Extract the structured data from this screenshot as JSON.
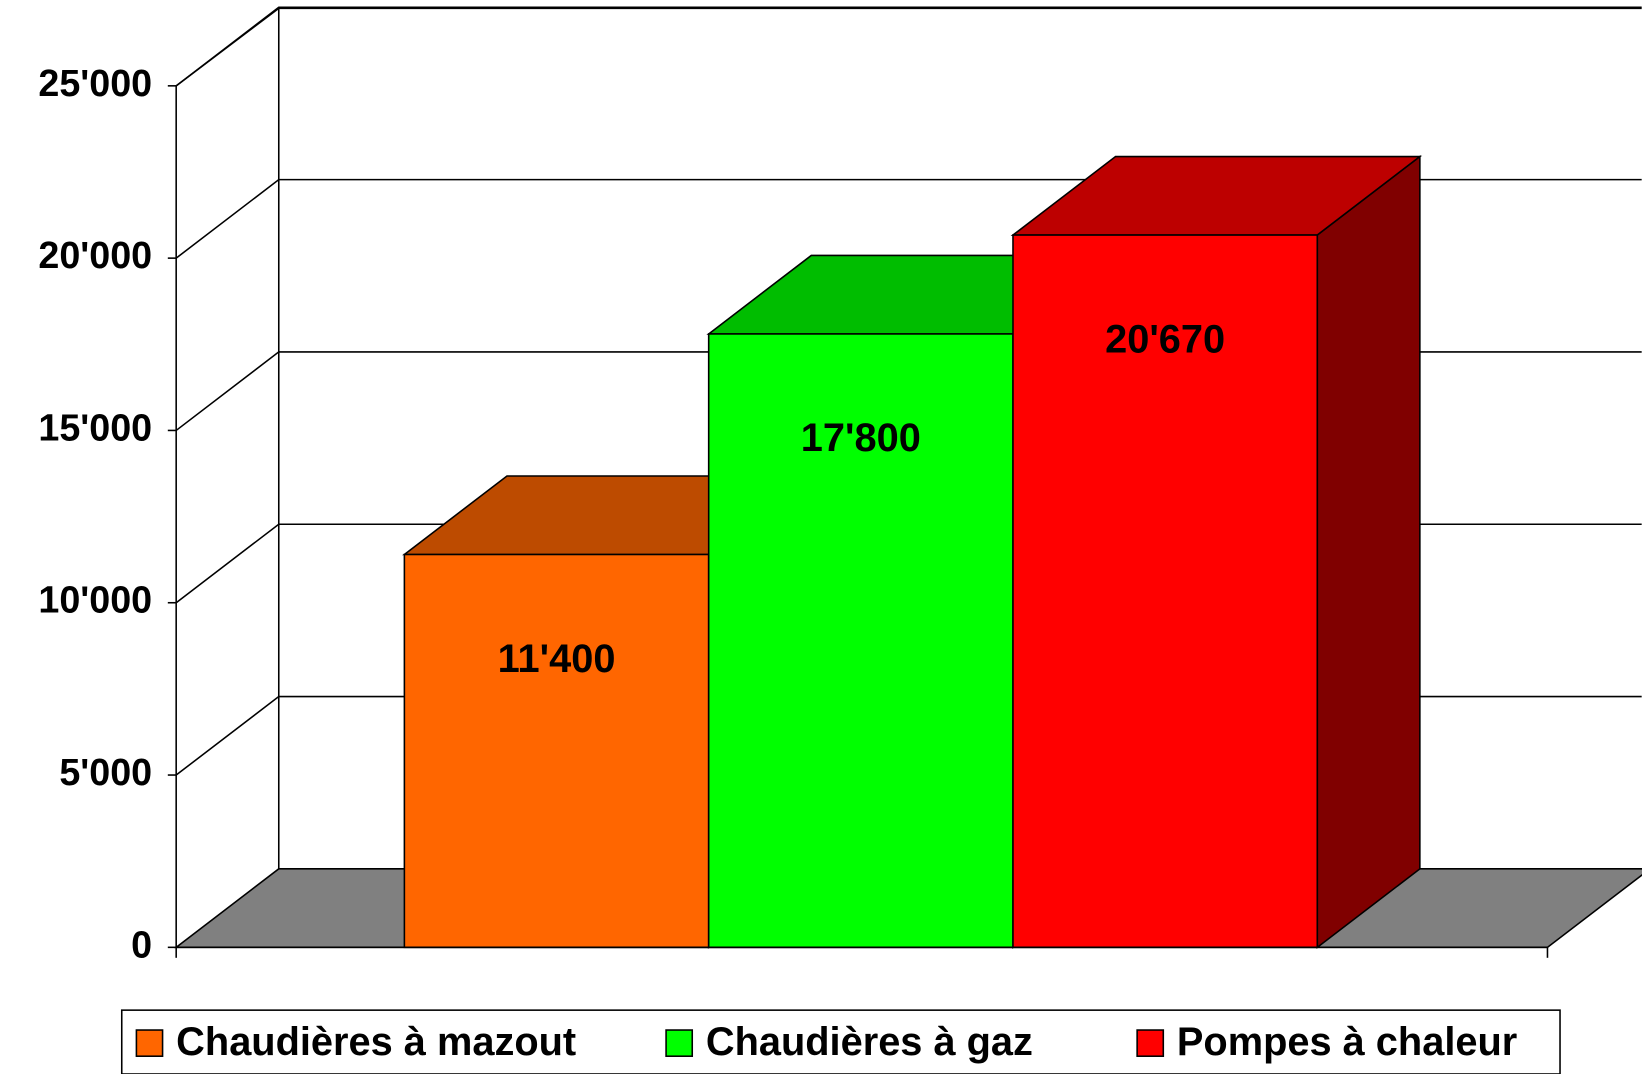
{
  "chart_data": {
    "type": "bar3d",
    "series": [
      {
        "name": "Chaudières à mazout",
        "color": "#ff6600",
        "values": [
          11400
        ],
        "value_labels": [
          "11'400"
        ]
      },
      {
        "name": "Chaudières à gaz",
        "color": "#00ff00",
        "values": [
          17800
        ],
        "value_labels": [
          "17'800"
        ]
      },
      {
        "name": "Pompes à chaleur",
        "color": "#ff0000",
        "values": [
          20670
        ],
        "value_labels": [
          "20'670"
        ]
      }
    ],
    "ylim": [
      0,
      25000
    ],
    "yticks": [
      {
        "value": 0,
        "label": "0"
      },
      {
        "value": 5000,
        "label": "5'000"
      },
      {
        "value": 10000,
        "label": "10'000"
      },
      {
        "value": 15000,
        "label": "15'000"
      },
      {
        "value": 20000,
        "label": "20'000"
      },
      {
        "value": 25000,
        "label": "25'000"
      }
    ],
    "grid": true,
    "legend": "bottom"
  }
}
